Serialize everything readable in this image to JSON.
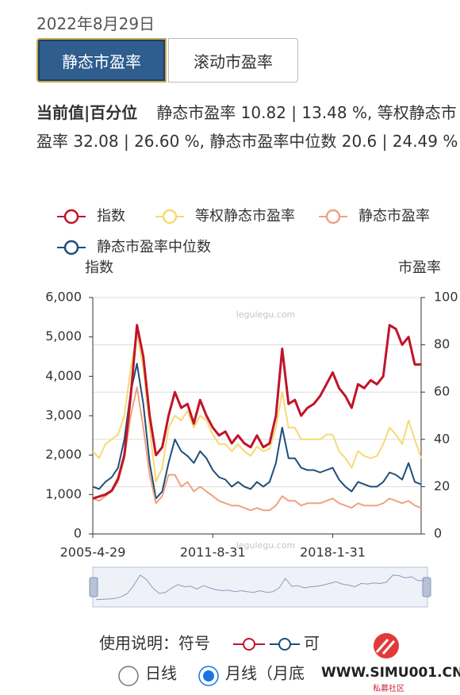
{
  "header": {
    "date": "2022年8月29日"
  },
  "tabs": [
    {
      "label": "静态市盈率",
      "selected": true
    },
    {
      "label": "滚动市盈率",
      "selected": false
    }
  ],
  "summary": {
    "label": "当前值|百分位",
    "text": "静态市盈率 10.82 | 13.48 %, 等权静态市盈率 32.08 | 26.60 %, 静态市盈率中位数 20.6 | 24.49 %"
  },
  "chart_data": {
    "type": "line",
    "y_label": "指数",
    "y2_label": "市盈率",
    "watermark": "legulegu.com",
    "categories": [
      "2005-4-29",
      null,
      null,
      null,
      null,
      null,
      null,
      null,
      null,
      null,
      null,
      null,
      null,
      null,
      null,
      null,
      null,
      null,
      null,
      "2011-8-31",
      null,
      null,
      null,
      null,
      null,
      null,
      null,
      null,
      null,
      null,
      null,
      null,
      null,
      null,
      null,
      null,
      null,
      null,
      "2018-1-31",
      null,
      null,
      null,
      null,
      null,
      null,
      null,
      null,
      null,
      null,
      null,
      null,
      null,
      null
    ],
    "ylim": [
      0,
      6000
    ],
    "yticks": [
      0,
      {
        "value": 1000,
        "label": "1,000"
      },
      {
        "value": 2000,
        "label": "2,000"
      },
      {
        "value": 3000,
        "label": "3,000"
      },
      {
        "value": 4000,
        "label": "4,000"
      },
      {
        "value": 5000,
        "label": "5,000"
      },
      {
        "value": 6000,
        "label": "6,000"
      }
    ],
    "y2lim": [
      0,
      100
    ],
    "y2ticks": [
      0,
      20,
      40,
      60,
      80,
      100
    ],
    "grid": true,
    "series": [
      {
        "name": "指数",
        "color": "#c0142b",
        "values": [
          900,
          950,
          1000,
          1100,
          1400,
          2000,
          3500,
          5300,
          4500,
          3000,
          2000,
          2200,
          3000,
          3600,
          3200,
          3300,
          2800,
          3400,
          3000,
          2700,
          2500,
          2600,
          2300,
          2500,
          2300,
          2200,
          2500,
          2200,
          2300,
          3000,
          4700,
          3300,
          3400,
          3000,
          3200,
          3300,
          3500,
          3800,
          4100,
          3700,
          3500,
          3200,
          3800,
          3700,
          3900,
          3800,
          4000,
          5300,
          5200,
          4800,
          5000,
          4300,
          4300
        ]
      },
      {
        "name": "等权静态市盈率",
        "color": "#f6da72",
        "axis": "y2",
        "values": [
          35,
          32,
          38,
          40,
          42,
          50,
          70,
          85,
          70,
          45,
          22,
          28,
          45,
          50,
          48,
          52,
          45,
          50,
          48,
          42,
          38,
          38,
          35,
          38,
          35,
          33,
          37,
          35,
          36,
          45,
          60,
          45,
          45,
          40,
          40,
          40,
          40,
          42,
          42,
          35,
          32,
          28,
          35,
          33,
          32,
          33,
          38,
          45,
          42,
          38,
          48,
          40,
          32
        ]
      },
      {
        "name": "静态市盈率",
        "color": "#eda382",
        "axis": "y2",
        "values": [
          15,
          14,
          16,
          18,
          22,
          32,
          50,
          62,
          45,
          25,
          13,
          16,
          25,
          25,
          20,
          22,
          18,
          20,
          18,
          16,
          14,
          13,
          12,
          12,
          11,
          10,
          11,
          10,
          10,
          12,
          16,
          14,
          14,
          12,
          13,
          13,
          13,
          14,
          15,
          13,
          12,
          11,
          13,
          12,
          12,
          12,
          13,
          15,
          14,
          13,
          14,
          12,
          11
        ]
      },
      {
        "name": "静态市盈率中位数",
        "color": "#1f4e79",
        "axis": "y2",
        "values": [
          20,
          19,
          22,
          24,
          28,
          40,
          60,
          72,
          55,
          30,
          15,
          18,
          30,
          40,
          35,
          33,
          30,
          35,
          32,
          27,
          24,
          23,
          20,
          22,
          20,
          19,
          22,
          20,
          22,
          30,
          45,
          32,
          32,
          28,
          27,
          27,
          26,
          27,
          28,
          23,
          20,
          18,
          22,
          21,
          20,
          20,
          22,
          26,
          25,
          23,
          30,
          22,
          21
        ]
      }
    ]
  },
  "usage": {
    "label": "使用说明：符号",
    "suffix": "可"
  },
  "options": [
    {
      "label": "日线",
      "selected": false
    },
    {
      "label": "月线（月底",
      "selected": true
    }
  ],
  "logo": {
    "text": "WWW.SIMU001.CN",
    "subtext": "私募社区"
  }
}
